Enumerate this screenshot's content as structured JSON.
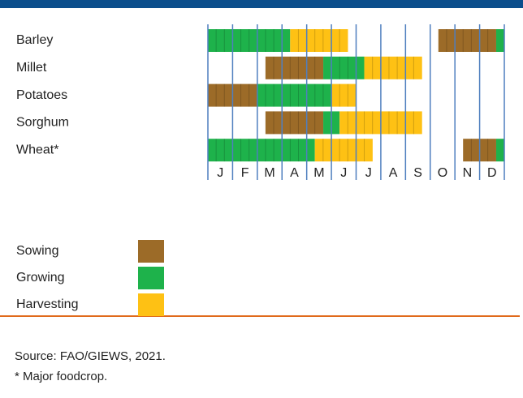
{
  "chart_data": {
    "type": "gantt",
    "categories": [
      "Barley",
      "Millet",
      "Potatoes",
      "Sorghum",
      "Wheat*"
    ],
    "months": [
      "J",
      "F",
      "M",
      "A",
      "M",
      "J",
      "J",
      "A",
      "S",
      "O",
      "N",
      "D"
    ],
    "xlim": [
      0,
      12
    ],
    "series": [
      {
        "name": "Sowing",
        "color": "#9c6b28",
        "values": [
          [
            [
              9.33,
              11.67
            ]
          ],
          [
            [
              2.33,
              4.67
            ]
          ],
          [
            [
              0,
              2
            ]
          ],
          [
            [
              2.33,
              4.67
            ]
          ],
          [
            [
              10.33,
              11.67
            ]
          ]
        ]
      },
      {
        "name": "Growing",
        "color": "#1eb24b",
        "values": [
          [
            [
              0,
              3.33
            ],
            [
              11.67,
              12
            ]
          ],
          [
            [
              4.67,
              6.33
            ]
          ],
          [
            [
              2,
              5
            ]
          ],
          [
            [
              4.67,
              5.33
            ]
          ],
          [
            [
              0,
              4.33
            ],
            [
              11.67,
              12
            ]
          ]
        ]
      },
      {
        "name": "Harvesting",
        "color": "#fec114",
        "values": [
          [
            [
              3.33,
              5.67
            ]
          ],
          [
            [
              6.33,
              8.67
            ]
          ],
          [
            [
              5,
              6
            ]
          ],
          [
            [
              5.33,
              8.67
            ]
          ],
          [
            [
              4.33,
              6.67
            ]
          ]
        ]
      }
    ],
    "notes": [
      "Source: FAO/GIEWS, 2021.",
      "* Major foodcrop."
    ]
  }
}
